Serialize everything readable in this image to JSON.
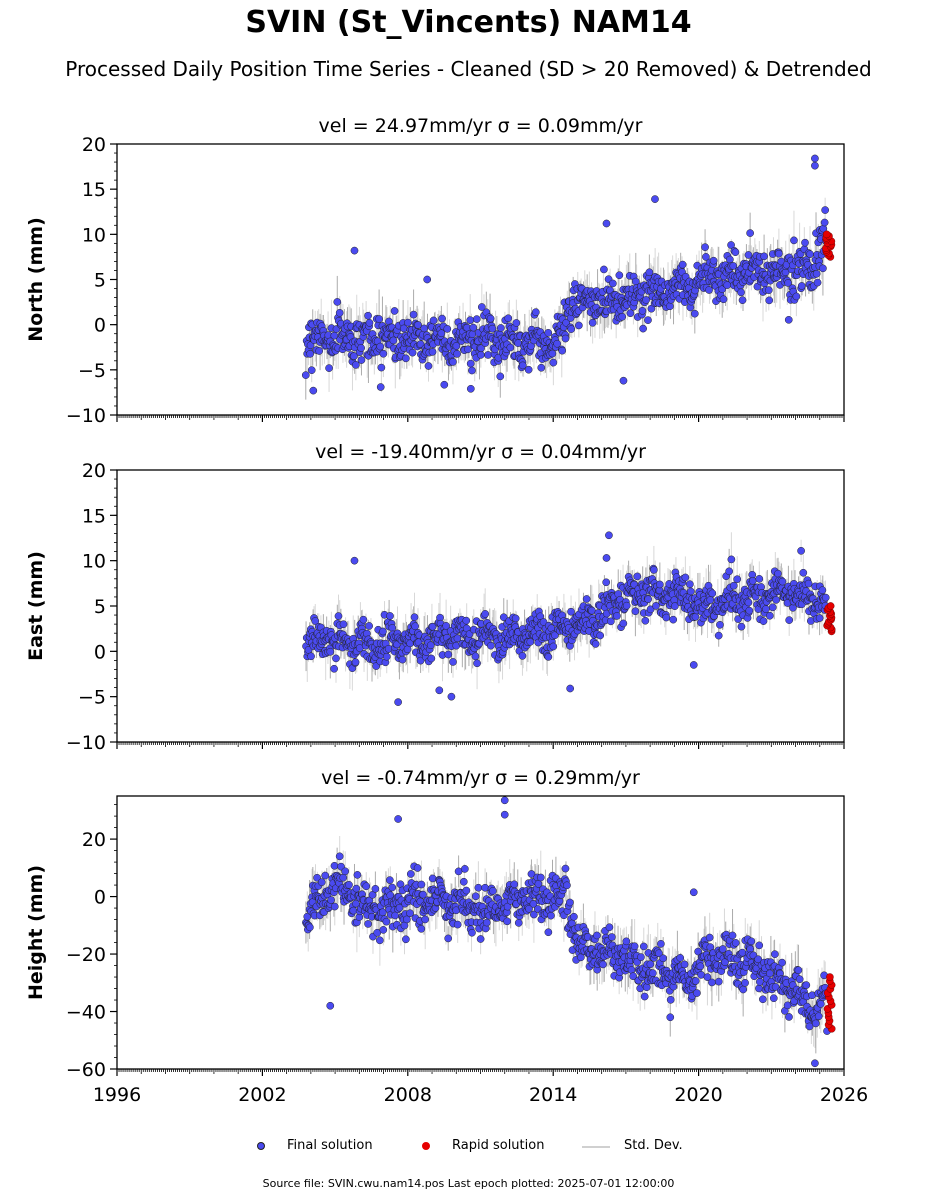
{
  "title": "SVIN (St_Vincents) NAM14",
  "subtitle": "Processed Daily Position Time Series - Cleaned (SD > 20 Removed) & Detrended",
  "legend": {
    "final": "Final solution",
    "rapid": "Rapid solution",
    "stddev": "Std. Dev."
  },
  "footer": "Source file: SVIN.cwu.nam14.pos  Last epoch plotted: 2025-07-01 12:00:00",
  "colors": {
    "final": "#4a4af0",
    "rapid": "#e60000",
    "stddev": "#c8c8c8",
    "edge": "#222222"
  },
  "chart_data": [
    {
      "type": "scatter",
      "component": "north",
      "panel_title": "vel = 24.97mm/yr   σ = 0.09mm/yr",
      "ylabel": "North (mm)",
      "xlim": [
        1996,
        2026
      ],
      "ylim": [
        -10,
        20
      ],
      "xticks": [
        "1996",
        "2002",
        "2008",
        "2014",
        "2020",
        "2026"
      ],
      "yticks": [
        -10,
        -5,
        0,
        5,
        10,
        15,
        20
      ],
      "ytick_labels": [
        "−10",
        "−5",
        "0",
        "5",
        "10",
        "15",
        "20"
      ],
      "show_xtick_labels": false,
      "series": [
        {
          "name": "Final solution",
          "trend": [
            [
              2003.8,
              -1.5
            ],
            [
              2009,
              -1.5
            ],
            [
              2014.3,
              -2.0
            ],
            [
              2014.6,
              2.0
            ],
            [
              2017,
              3.0
            ],
            [
              2020,
              4.5
            ],
            [
              2020.3,
              5.5
            ],
            [
              2024,
              6.0
            ],
            [
              2025.0,
              7.5
            ],
            [
              2025.5,
              9.0
            ]
          ],
          "spread": 2.2
        },
        {
          "name": "Rapid solution",
          "x_range": [
            2025.25,
            2025.5
          ],
          "y_range": [
            7.5,
            10.0
          ]
        }
      ],
      "notable_points": [
        [
          2004.1,
          -7.3
        ],
        [
          2005.8,
          8.2
        ],
        [
          2018.2,
          13.9
        ],
        [
          2024.8,
          18.4
        ],
        [
          2024.8,
          17.6
        ],
        [
          2008.8,
          5.0
        ],
        [
          2010.6,
          -7.1
        ],
        [
          2016.2,
          11.2
        ],
        [
          2016.9,
          -6.2
        ]
      ]
    },
    {
      "type": "scatter",
      "component": "east",
      "panel_title": "vel = -19.40mm/yr   σ = 0.04mm/yr",
      "ylabel": "East (mm)",
      "xlim": [
        1996,
        2026
      ],
      "ylim": [
        -10,
        20
      ],
      "xticks": [
        "1996",
        "2002",
        "2008",
        "2014",
        "2020",
        "2026"
      ],
      "yticks": [
        -10,
        -5,
        0,
        5,
        10,
        15,
        20
      ],
      "ytick_labels": [
        "−10",
        "−5",
        "0",
        "5",
        "10",
        "15",
        "20"
      ],
      "show_xtick_labels": false,
      "series": [
        {
          "name": "Final solution",
          "trend": [
            [
              2003.8,
              1.0
            ],
            [
              2008,
              1.2
            ],
            [
              2013,
              2.0
            ],
            [
              2015,
              3.0
            ],
            [
              2016.5,
              5.0
            ],
            [
              2018,
              6.5
            ],
            [
              2020,
              5.5
            ],
            [
              2021,
              5.0
            ],
            [
              2023,
              6.5
            ],
            [
              2025,
              6.0
            ],
            [
              2025.5,
              4.5
            ]
          ],
          "spread": 2.0
        },
        {
          "name": "Rapid solution",
          "x_range": [
            2025.3,
            2025.5
          ],
          "y_range": [
            2.2,
            5.0
          ]
        }
      ],
      "notable_points": [
        [
          2005.8,
          10.0
        ],
        [
          2007.6,
          -5.6
        ],
        [
          2016.3,
          12.8
        ],
        [
          2016.2,
          10.3
        ],
        [
          2019.8,
          -1.5
        ],
        [
          2014.7,
          -4.1
        ],
        [
          2009.8,
          -5.0
        ],
        [
          2009.3,
          -4.3
        ]
      ]
    },
    {
      "type": "scatter",
      "component": "height",
      "panel_title": "vel = -0.74mm/yr   σ = 0.29mm/yr",
      "ylabel": "Height (mm)",
      "xlim": [
        1996,
        2026
      ],
      "ylim": [
        -60,
        35
      ],
      "xticks": [
        "1996",
        "2002",
        "2008",
        "2014",
        "2020",
        "2026"
      ],
      "yticks": [
        -60,
        -40,
        -20,
        0,
        20
      ],
      "ytick_labels": [
        "−60",
        "−40",
        "−20",
        "0",
        "20"
      ],
      "show_xtick_labels": true,
      "series": [
        {
          "name": "Final solution",
          "trend": [
            [
              2003.8,
              -5.0
            ],
            [
              2005,
              5.0
            ],
            [
              2006.5,
              -5.0
            ],
            [
              2009,
              0.0
            ],
            [
              2011,
              -5.0
            ],
            [
              2013,
              0.0
            ],
            [
              2014.5,
              0.0
            ],
            [
              2015,
              -15.0
            ],
            [
              2016.5,
              -20.0
            ],
            [
              2018,
              -25.0
            ],
            [
              2019.5,
              -30.0
            ],
            [
              2020.3,
              -22.0
            ],
            [
              2022,
              -22.0
            ],
            [
              2023.5,
              -30.0
            ],
            [
              2024.8,
              -40.0
            ],
            [
              2025.5,
              -35.0
            ]
          ],
          "spread": 7.0
        },
        {
          "name": "Rapid solution",
          "x_range": [
            2025.3,
            2025.5
          ],
          "y_range": [
            -46.0,
            -28.0
          ]
        }
      ],
      "notable_points": [
        [
          2012.0,
          33.5
        ],
        [
          2012.0,
          28.5
        ],
        [
          2007.6,
          27.0
        ],
        [
          2004.8,
          -38.0
        ],
        [
          2024.8,
          -58.0
        ],
        [
          2025.3,
          -46.8
        ],
        [
          2019.8,
          1.5
        ]
      ]
    }
  ]
}
